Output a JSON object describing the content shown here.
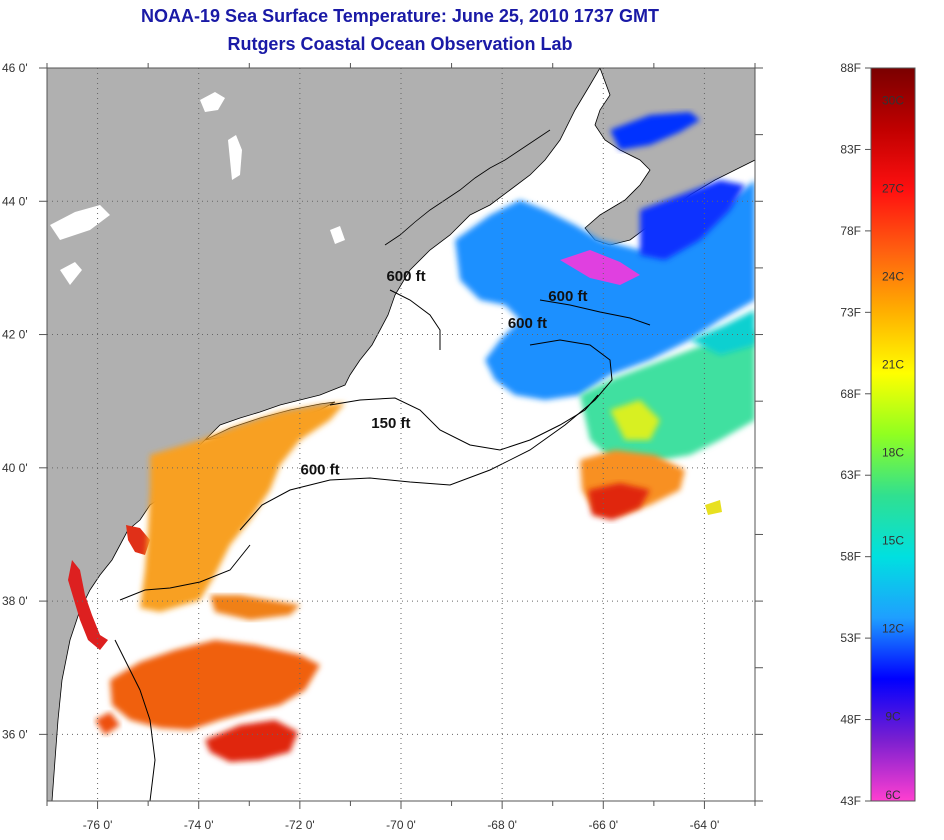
{
  "title": {
    "line1": "NOAA-19 Sea Surface Temperature:  June 25, 2010 1737 GMT",
    "line2": "Rutgers Coastal Ocean Observation Lab"
  },
  "map": {
    "lon_range": [
      -77,
      -63
    ],
    "lat_range": [
      35,
      46
    ],
    "lon_ticks": [
      {
        "value": -76,
        "label": "-76 0'"
      },
      {
        "value": -74,
        "label": "-74 0'"
      },
      {
        "value": -72,
        "label": "-72 0'"
      },
      {
        "value": -70,
        "label": "-70 0'"
      },
      {
        "value": -68,
        "label": "-68 0'"
      },
      {
        "value": -66,
        "label": "-66 0'"
      },
      {
        "value": -64,
        "label": "-64 0'"
      }
    ],
    "lat_ticks": [
      {
        "value": 46,
        "label": "46 0'"
      },
      {
        "value": 44,
        "label": "44 0'"
      },
      {
        "value": 42,
        "label": "42 0'"
      },
      {
        "value": 40,
        "label": "40 0'"
      },
      {
        "value": 38,
        "label": "38 0'"
      },
      {
        "value": 36,
        "label": "36 0'"
      }
    ],
    "grid": "dotted",
    "isobath_labels": [
      {
        "text": "600 ft",
        "lon": -69.9,
        "lat": 42.8
      },
      {
        "text": "600 ft",
        "lon": -66.7,
        "lat": 42.5
      },
      {
        "text": "600 ft",
        "lon": -67.5,
        "lat": 42.1
      },
      {
        "text": "150 ft",
        "lon": -70.2,
        "lat": 40.6
      },
      {
        "text": "600 ft",
        "lon": -71.6,
        "lat": 39.9
      }
    ],
    "colors": {
      "land": "#b0b0b0",
      "cloud": "#ffffff",
      "coastline": "#000000"
    }
  },
  "colorbar": {
    "fahrenheit": [
      {
        "value": 88,
        "label": "88F"
      },
      {
        "value": 83,
        "label": "83F"
      },
      {
        "value": 78,
        "label": "78F"
      },
      {
        "value": 73,
        "label": "73F"
      },
      {
        "value": 68,
        "label": "68F"
      },
      {
        "value": 63,
        "label": "63F"
      },
      {
        "value": 58,
        "label": "58F"
      },
      {
        "value": 53,
        "label": "53F"
      },
      {
        "value": 48,
        "label": "48F"
      },
      {
        "value": 43,
        "label": "43F"
      }
    ],
    "celsius": [
      {
        "value": 30,
        "label": "30C"
      },
      {
        "value": 27,
        "label": "27C"
      },
      {
        "value": 24,
        "label": "24C"
      },
      {
        "value": 21,
        "label": "21C"
      },
      {
        "value": 18,
        "label": "18C"
      },
      {
        "value": 15,
        "label": "15C"
      },
      {
        "value": 12,
        "label": "12C"
      },
      {
        "value": 9,
        "label": "9C"
      },
      {
        "value": 6,
        "label": "6C"
      }
    ],
    "stops": [
      "#ff3fd0",
      "#7a1fd0",
      "#0000ff",
      "#1f9fff",
      "#00e0e0",
      "#30e090",
      "#90ff20",
      "#ffff00",
      "#ffb000",
      "#ff6010",
      "#ff1010",
      "#c00000",
      "#7a0000"
    ]
  }
}
